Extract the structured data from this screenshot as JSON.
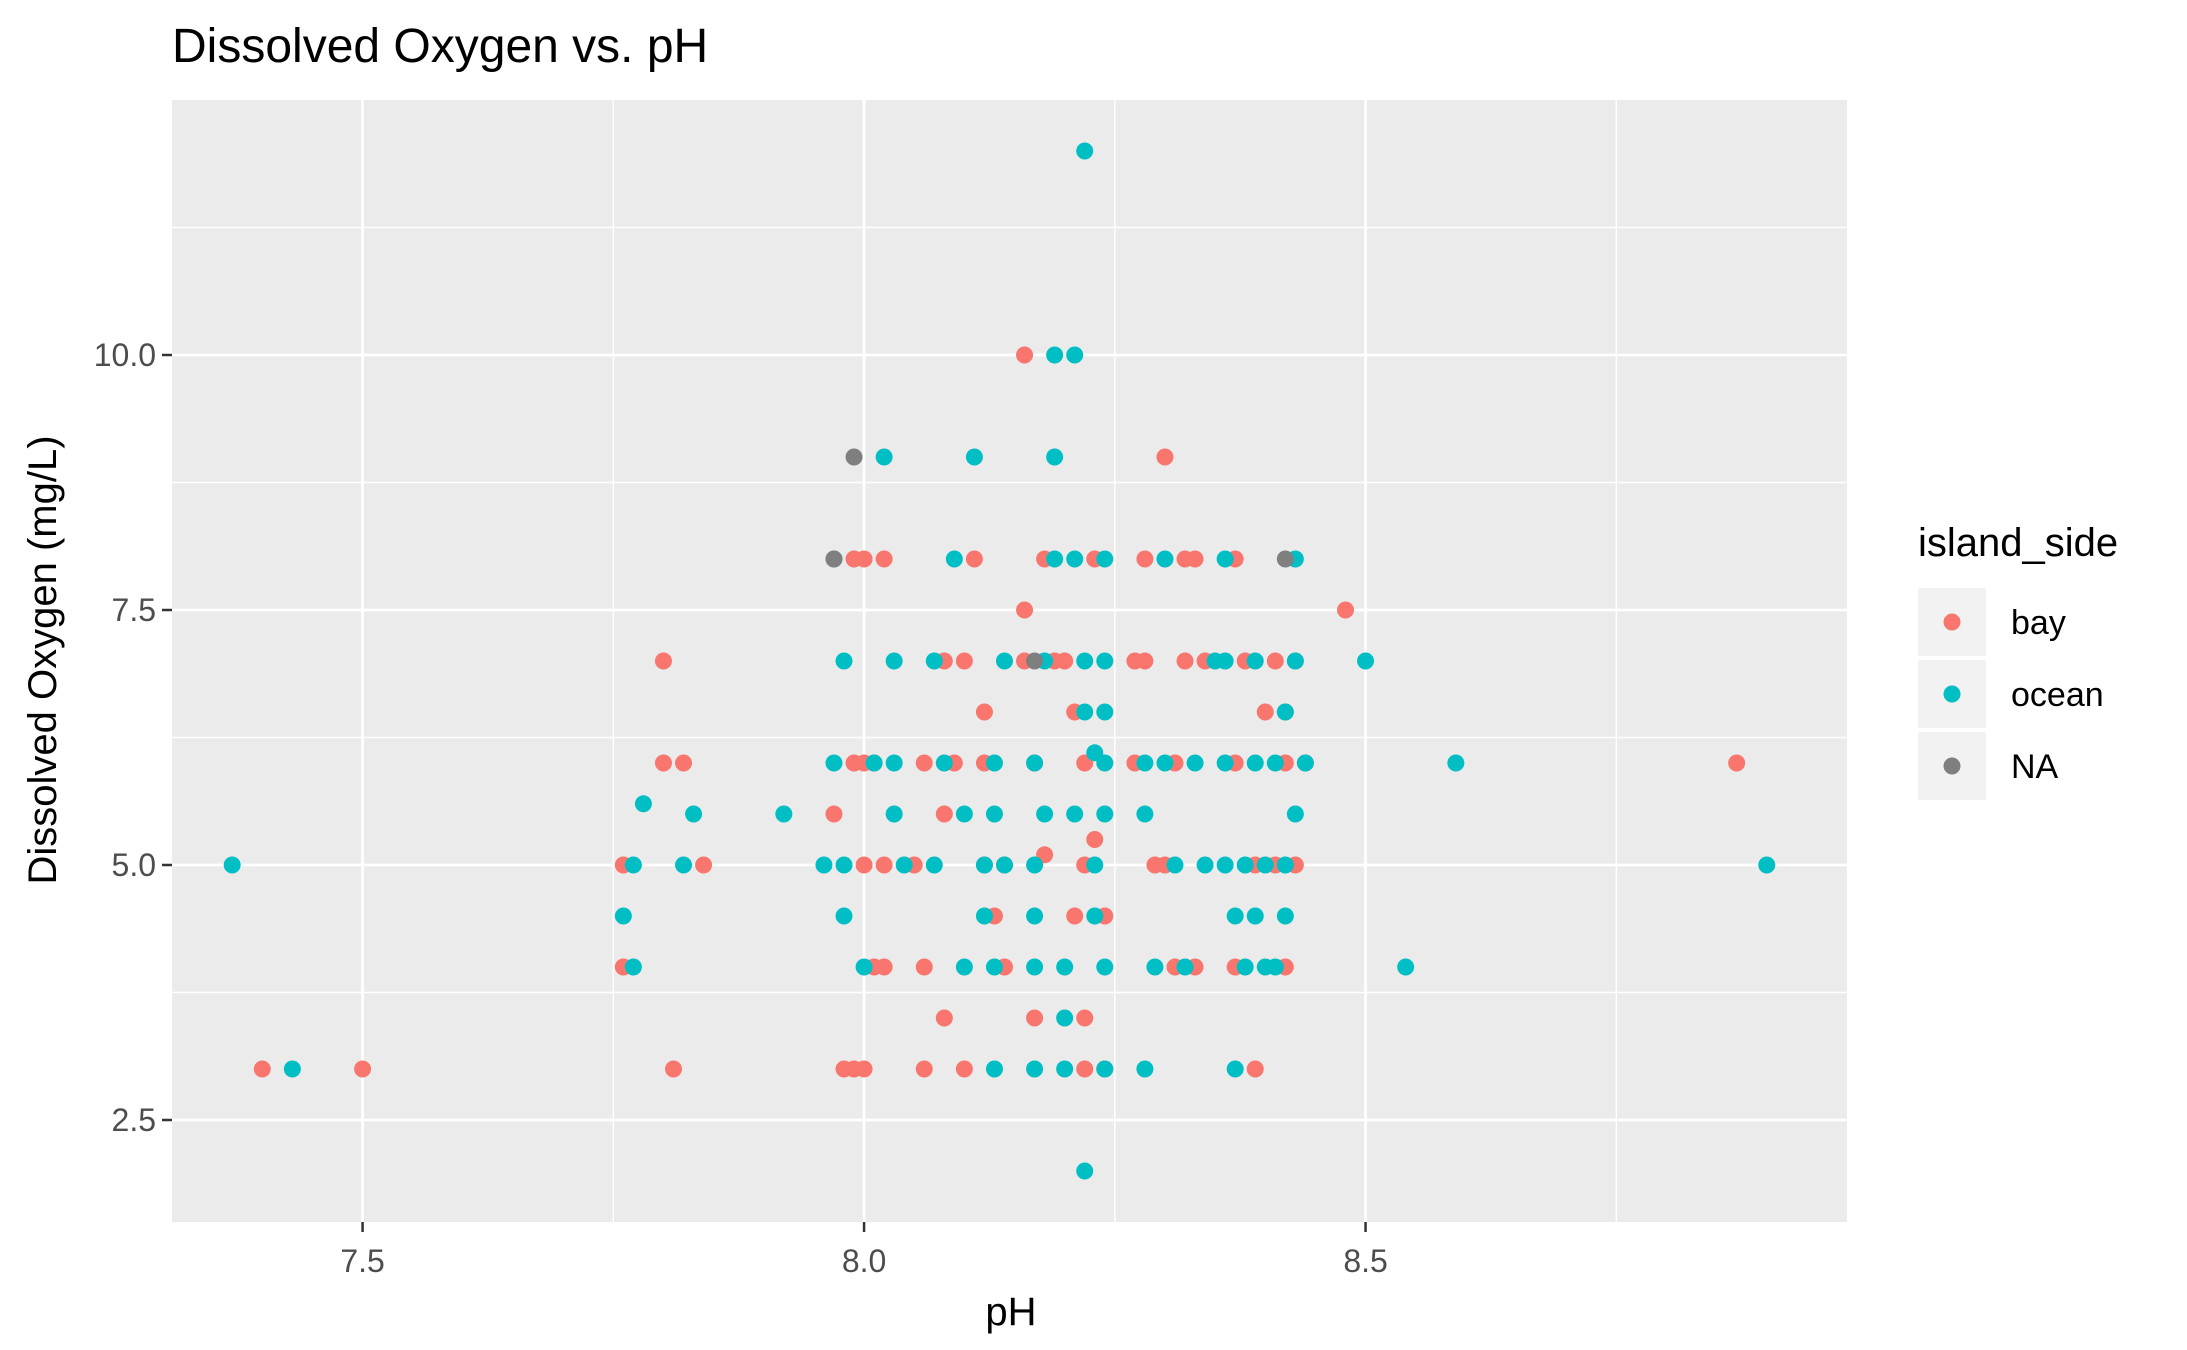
{
  "chart_data": {
    "type": "scatter",
    "title": "Dissolved Oxygen vs. pH",
    "xlabel": "pH",
    "ylabel": "Dissolved Oxygen (mg/L)",
    "xlim": [
      7.31,
      8.98
    ],
    "ylim": [
      1.5,
      12.5
    ],
    "x_ticks": [
      7.5,
      8.0,
      8.5
    ],
    "x_tick_labels": [
      "7.5",
      "8.0",
      "8.5"
    ],
    "y_ticks": [
      2.5,
      5.0,
      7.5,
      10.0
    ],
    "y_tick_labels": [
      "2.5",
      "5.0",
      "7.5",
      "10.0"
    ],
    "grid": true,
    "legend": {
      "title": "island_side",
      "placement": "right"
    },
    "series": [
      {
        "name": "bay",
        "color": "#F8766D",
        "points": [
          [
            7.4,
            3.0
          ],
          [
            7.5,
            3.0
          ],
          [
            7.76,
            5.0
          ],
          [
            7.76,
            4.0
          ],
          [
            7.8,
            7.0
          ],
          [
            7.81,
            3.0
          ],
          [
            7.8,
            6.0
          ],
          [
            7.82,
            6.0
          ],
          [
            7.84,
            5.0
          ],
          [
            7.97,
            5.5
          ],
          [
            7.98,
            3.0
          ],
          [
            7.99,
            3.0
          ],
          [
            8.0,
            3.0
          ],
          [
            7.99,
            8.0
          ],
          [
            8.0,
            8.0
          ],
          [
            8.02,
            8.0
          ],
          [
            7.99,
            6.0
          ],
          [
            8.0,
            6.0
          ],
          [
            8.01,
            6.0
          ],
          [
            8.0,
            5.0
          ],
          [
            8.02,
            5.0
          ],
          [
            8.01,
            4.0
          ],
          [
            8.02,
            4.0
          ],
          [
            8.05,
            5.0
          ],
          [
            8.06,
            6.0
          ],
          [
            8.06,
            4.0
          ],
          [
            8.06,
            3.0
          ],
          [
            8.08,
            5.5
          ],
          [
            8.08,
            7.0
          ],
          [
            8.08,
            3.5
          ],
          [
            8.09,
            6.0
          ],
          [
            8.1,
            3.0
          ],
          [
            8.1,
            7.0
          ],
          [
            8.11,
            8.0
          ],
          [
            8.12,
            6.0
          ],
          [
            8.12,
            6.5
          ],
          [
            8.12,
            5.0
          ],
          [
            8.13,
            4.5
          ],
          [
            8.14,
            5.0
          ],
          [
            8.14,
            4.0
          ],
          [
            8.16,
            10.0
          ],
          [
            8.16,
            7.5
          ],
          [
            8.16,
            7.0
          ],
          [
            8.17,
            3.5
          ],
          [
            8.17,
            6.0
          ],
          [
            8.18,
            8.0
          ],
          [
            8.18,
            5.1
          ],
          [
            8.19,
            7.0
          ],
          [
            8.2,
            7.0
          ],
          [
            8.21,
            6.5
          ],
          [
            8.21,
            4.5
          ],
          [
            8.22,
            3.5
          ],
          [
            8.22,
            3.0
          ],
          [
            8.22,
            5.0
          ],
          [
            8.22,
            6.0
          ],
          [
            8.23,
            5.25
          ],
          [
            8.23,
            8.0
          ],
          [
            8.24,
            3.0
          ],
          [
            8.24,
            4.5
          ],
          [
            8.27,
            7.0
          ],
          [
            8.27,
            6.0
          ],
          [
            8.28,
            8.0
          ],
          [
            8.28,
            7.0
          ],
          [
            8.29,
            5.0
          ],
          [
            8.3,
            9.0
          ],
          [
            8.3,
            5.0
          ],
          [
            8.31,
            6.0
          ],
          [
            8.31,
            4.0
          ],
          [
            8.32,
            8.0
          ],
          [
            8.32,
            7.0
          ],
          [
            8.33,
            8.0
          ],
          [
            8.33,
            4.0
          ],
          [
            8.34,
            7.0
          ],
          [
            8.37,
            8.0
          ],
          [
            8.37,
            6.0
          ],
          [
            8.37,
            4.0
          ],
          [
            8.38,
            7.0
          ],
          [
            8.39,
            5.0
          ],
          [
            8.39,
            3.0
          ],
          [
            8.4,
            6.5
          ],
          [
            8.41,
            5.0
          ],
          [
            8.41,
            7.0
          ],
          [
            8.42,
            4.0
          ],
          [
            8.42,
            6.0
          ],
          [
            8.42,
            6.5
          ],
          [
            8.43,
            5.0
          ],
          [
            8.43,
            7.0
          ],
          [
            8.44,
            6.0
          ],
          [
            8.48,
            7.5
          ],
          [
            8.87,
            6.0
          ]
        ]
      },
      {
        "name": "ocean",
        "color": "#00BFC4",
        "points": [
          [
            7.37,
            5.0
          ],
          [
            7.43,
            3.0
          ],
          [
            7.76,
            4.5
          ],
          [
            7.77,
            4.0
          ],
          [
            7.77,
            5.0
          ],
          [
            7.78,
            5.6
          ],
          [
            7.82,
            5.0
          ],
          [
            7.83,
            5.5
          ],
          [
            7.92,
            5.5
          ],
          [
            7.96,
            5.0
          ],
          [
            7.97,
            6.0
          ],
          [
            7.97,
            8.0
          ],
          [
            7.98,
            7.0
          ],
          [
            7.98,
            4.5
          ],
          [
            7.98,
            5.0
          ],
          [
            8.0,
            4.0
          ],
          [
            8.01,
            6.0
          ],
          [
            8.02,
            9.0
          ],
          [
            8.03,
            7.0
          ],
          [
            8.03,
            6.0
          ],
          [
            8.03,
            5.5
          ],
          [
            8.04,
            5.0
          ],
          [
            8.07,
            5.0
          ],
          [
            8.07,
            7.0
          ],
          [
            8.08,
            6.0
          ],
          [
            8.09,
            8.0
          ],
          [
            8.1,
            5.5
          ],
          [
            8.1,
            4.0
          ],
          [
            8.11,
            9.0
          ],
          [
            8.12,
            4.5
          ],
          [
            8.12,
            5.0
          ],
          [
            8.13,
            3.0
          ],
          [
            8.13,
            5.5
          ],
          [
            8.13,
            6.0
          ],
          [
            8.13,
            4.0
          ],
          [
            8.14,
            7.0
          ],
          [
            8.14,
            5.0
          ],
          [
            8.17,
            6.0
          ],
          [
            8.17,
            5.0
          ],
          [
            8.17,
            4.5
          ],
          [
            8.17,
            4.0
          ],
          [
            8.17,
            3.0
          ],
          [
            8.18,
            7.0
          ],
          [
            8.18,
            5.5
          ],
          [
            8.19,
            10.0
          ],
          [
            8.19,
            9.0
          ],
          [
            8.19,
            8.0
          ],
          [
            8.2,
            3.5
          ],
          [
            8.2,
            4.0
          ],
          [
            8.2,
            3.0
          ],
          [
            8.21,
            10.0
          ],
          [
            8.21,
            8.0
          ],
          [
            8.21,
            5.5
          ],
          [
            8.22,
            12.0
          ],
          [
            8.22,
            2.0
          ],
          [
            8.22,
            7.0
          ],
          [
            8.22,
            6.5
          ],
          [
            8.23,
            6.1
          ],
          [
            8.23,
            4.5
          ],
          [
            8.23,
            5.0
          ],
          [
            8.24,
            8.0
          ],
          [
            8.24,
            6.0
          ],
          [
            8.24,
            6.5
          ],
          [
            8.24,
            5.5
          ],
          [
            8.24,
            4.0
          ],
          [
            8.24,
            3.0
          ],
          [
            8.24,
            7.0
          ],
          [
            8.28,
            6.0
          ],
          [
            8.28,
            5.5
          ],
          [
            8.28,
            3.0
          ],
          [
            8.29,
            4.0
          ],
          [
            8.3,
            8.0
          ],
          [
            8.3,
            6.0
          ],
          [
            8.31,
            5.0
          ],
          [
            8.32,
            4.0
          ],
          [
            8.33,
            6.0
          ],
          [
            8.34,
            5.0
          ],
          [
            8.35,
            7.0
          ],
          [
            8.36,
            8.0
          ],
          [
            8.36,
            7.0
          ],
          [
            8.36,
            6.0
          ],
          [
            8.36,
            5.0
          ],
          [
            8.37,
            4.5
          ],
          [
            8.37,
            3.0
          ],
          [
            8.38,
            5.0
          ],
          [
            8.38,
            4.0
          ],
          [
            8.39,
            4.5
          ],
          [
            8.39,
            6.0
          ],
          [
            8.39,
            7.0
          ],
          [
            8.4,
            4.0
          ],
          [
            8.4,
            5.0
          ],
          [
            8.41,
            6.0
          ],
          [
            8.41,
            4.0
          ],
          [
            8.42,
            5.0
          ],
          [
            8.42,
            6.5
          ],
          [
            8.42,
            4.5
          ],
          [
            8.43,
            7.0
          ],
          [
            8.43,
            5.5
          ],
          [
            8.43,
            8.0
          ],
          [
            8.44,
            6.0
          ],
          [
            8.5,
            7.0
          ],
          [
            8.54,
            4.0
          ],
          [
            8.59,
            6.0
          ],
          [
            8.9,
            5.0
          ]
        ]
      },
      {
        "name": "NA",
        "color": "#7F7F7F",
        "points": [
          [
            7.99,
            9.0
          ],
          [
            7.97,
            8.0
          ],
          [
            8.17,
            7.0
          ],
          [
            8.42,
            8.0
          ]
        ]
      }
    ]
  }
}
